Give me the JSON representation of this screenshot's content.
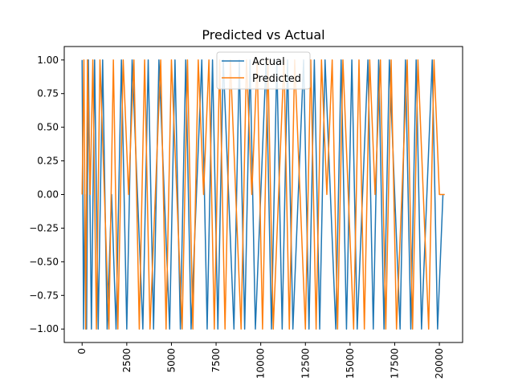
{
  "chart_data": {
    "type": "line",
    "title": "Predicted vs Actual",
    "xlabel": "",
    "ylabel": "",
    "xlim": [
      -1000,
      21300
    ],
    "ylim": [
      -1.1,
      1.1
    ],
    "grid": false,
    "legend_position": "top-center",
    "x_ticks": [
      0,
      2500,
      5000,
      7500,
      10000,
      12500,
      15000,
      17500,
      20000
    ],
    "x_tick_labels": [
      "0",
      "2500",
      "5000",
      "7500",
      "10000",
      "12500",
      "15000",
      "17500",
      "20000"
    ],
    "y_ticks": [
      1.0,
      0.75,
      0.5,
      0.25,
      0.0,
      -0.25,
      -0.5,
      -0.75,
      -1.0
    ],
    "y_tick_labels": [
      "1.00",
      "0.75",
      "0.50",
      "0.25",
      "0.00",
      "−0.25",
      "−0.50",
      "−0.75",
      "−1.00"
    ],
    "series": [
      {
        "name": "Actual",
        "color": "#1f77b4",
        "x": [
          0,
          80,
          150,
          250,
          350,
          520,
          700,
          900,
          1150,
          1400,
          1650,
          1900,
          2200,
          2500,
          2800,
          3100,
          3400,
          3700,
          4000,
          4300,
          4600,
          4900,
          5200,
          5500,
          5800,
          6100,
          6400,
          6700,
          7000,
          7300,
          7600,
          7900,
          8200,
          8500,
          8800,
          9100,
          9400,
          9700,
          10000,
          10300,
          10600,
          10900,
          11200,
          11500,
          11800,
          12100,
          12400,
          12700,
          13000,
          13300,
          13600,
          13900,
          14200,
          14500,
          14800,
          15100,
          15400,
          15700,
          16000,
          16300,
          16600,
          16900,
          17200,
          17500,
          17800,
          18100,
          18400,
          18700,
          19000,
          19300,
          19600,
          19900,
          20200
        ],
        "values": [
          1,
          -1,
          0,
          -1,
          1,
          -1,
          1,
          -1,
          1,
          -1,
          0,
          -1,
          1,
          -1,
          1,
          0,
          -1,
          1,
          -1,
          1,
          0,
          -1,
          1,
          -1,
          1,
          -1,
          0,
          1,
          -1,
          1,
          -1,
          1,
          0,
          -1,
          1,
          -1,
          1,
          -1,
          0,
          1,
          -1,
          1,
          -1,
          1,
          -1,
          0,
          1,
          -1,
          1,
          -1,
          1,
          0,
          -1,
          1,
          -1,
          1,
          -1,
          0,
          1,
          -1,
          1,
          -1,
          1,
          0,
          -1,
          1,
          -1,
          1,
          -1,
          0,
          1,
          -1,
          0
        ]
      },
      {
        "name": "Predicted",
        "color": "#ff7f0e",
        "x": [
          0,
          100,
          200,
          300,
          450,
          600,
          800,
          1000,
          1250,
          1500,
          1750,
          2000,
          2300,
          2600,
          2900,
          3200,
          3500,
          3800,
          4100,
          4400,
          4700,
          5000,
          5300,
          5600,
          5900,
          6200,
          6500,
          6800,
          7100,
          7400,
          7700,
          8000,
          8300,
          8600,
          8900,
          9200,
          9500,
          9800,
          10100,
          10400,
          10700,
          11000,
          11300,
          11600,
          11900,
          12200,
          12500,
          12800,
          13100,
          13400,
          13700,
          14000,
          14300,
          14600,
          14900,
          15200,
          15500,
          15800,
          16100,
          16400,
          16700,
          17000,
          17300,
          17600,
          17900,
          18200,
          18500,
          18800,
          19100,
          19400,
          19700,
          20000,
          20300
        ],
        "values": [
          0,
          1,
          -1,
          1,
          0,
          1,
          -1,
          1,
          0,
          -1,
          1,
          -1,
          1,
          0,
          1,
          -1,
          1,
          -1,
          0,
          1,
          -1,
          1,
          0,
          -1,
          1,
          -1,
          1,
          0,
          1,
          -1,
          1,
          -1,
          1,
          0,
          -1,
          1,
          0,
          1,
          -1,
          1,
          -1,
          0,
          1,
          -1,
          1,
          0,
          -1,
          1,
          -1,
          1,
          0,
          1,
          -1,
          1,
          0,
          -1,
          1,
          -1,
          1,
          0,
          1,
          -1,
          1,
          -1,
          0,
          1,
          -1,
          1,
          0,
          -1,
          1,
          0,
          0
        ]
      }
    ]
  }
}
